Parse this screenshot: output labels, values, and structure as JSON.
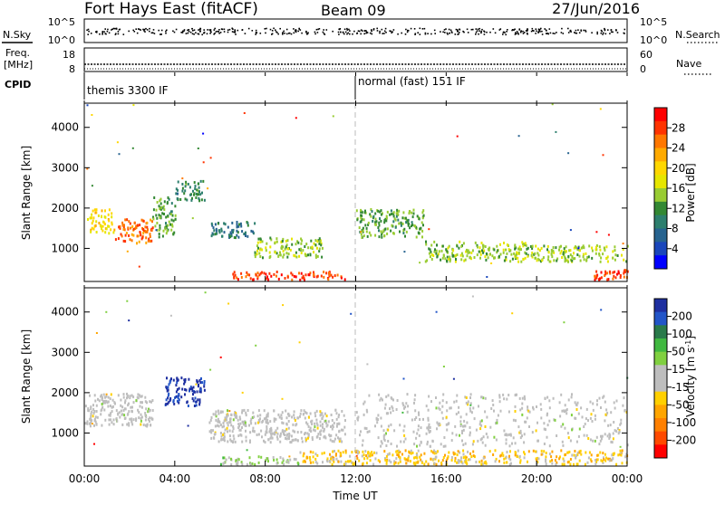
{
  "header": {
    "station": "Fort Hays East (fitACF)",
    "beam": "Beam 09",
    "date": "27/Jun/2016"
  },
  "noise_panel": {
    "left_label": "N.Sky",
    "right_label": "N.Search",
    "left_ticks": [
      "10^5",
      "10^0"
    ],
    "right_ticks": [
      "10^5",
      "10^0"
    ]
  },
  "freq_panel": {
    "left_label_1": "Freq.",
    "left_label_2": "[MHz]",
    "right_label": "Nave",
    "left_ticks": [
      "18",
      "8"
    ],
    "right_ticks": [
      "60",
      "0"
    ]
  },
  "cpid": {
    "label": "CPID",
    "modes": [
      {
        "text": "themis 3300 IF",
        "start_hour": 0
      },
      {
        "text": "normal (fast) 151 IF",
        "start_hour": 12
      }
    ]
  },
  "time_axis": {
    "title": "Time UT",
    "ticks": [
      "00:00",
      "04:00",
      "08:00",
      "12:00",
      "16:00",
      "20:00",
      "00:00"
    ]
  },
  "power_colorbar": {
    "label": "Power [dB]",
    "ticks": [
      "28",
      "24",
      "20",
      "16",
      "12",
      "8",
      "4"
    ],
    "colors": [
      "#ff0000",
      "#ff3300",
      "#ff7700",
      "#ffaa00",
      "#ffd700",
      "#e6e600",
      "#99cc33",
      "#338833",
      "#2d7f6e",
      "#27638f",
      "#1a46bb",
      "#0000ff"
    ]
  },
  "velocity_colorbar": {
    "label_main": "Velocity [m s",
    "label_sup": "-1",
    "label_end": "]",
    "ticks": [
      "200",
      "100",
      "50",
      "15",
      "-15",
      "-50",
      "-100",
      "-200"
    ],
    "colors": [
      "#1e2fa0",
      "#2255c8",
      "#2a7a4a",
      "#40b840",
      "#80d040",
      "#bebebe",
      "#bebebe",
      "#ffd000",
      "#ffa500",
      "#ff8000",
      "#ff4a00",
      "#ff0000"
    ]
  },
  "chart_data": [
    {
      "type": "scatter",
      "title": "Power",
      "xlabel": "Time UT",
      "ylabel": "Slant Range [km]",
      "xlim": [
        0,
        24
      ],
      "ylim": [
        180,
        4600
      ],
      "yticks": [
        1000,
        2000,
        3000,
        4000
      ],
      "color_range": [
        0,
        30
      ],
      "regions": [
        {
          "hour": [
            0.1,
            1.3
          ],
          "range": [
            1400,
            2000
          ],
          "value": 18
        },
        {
          "hour": [
            1.3,
            3.0
          ],
          "range": [
            1150,
            1750
          ],
          "value": 24
        },
        {
          "hour": [
            3.0,
            4.0
          ],
          "range": [
            1300,
            2300
          ],
          "value": 12
        },
        {
          "hour": [
            4.0,
            5.3
          ],
          "range": [
            2200,
            2700
          ],
          "value": 10
        },
        {
          "hour": [
            5.5,
            7.5
          ],
          "range": [
            1300,
            1700
          ],
          "value": 8
        },
        {
          "hour": [
            7.5,
            10.5
          ],
          "range": [
            800,
            1300
          ],
          "value": 14
        },
        {
          "hour": [
            6.5,
            11.5
          ],
          "range": [
            250,
            450
          ],
          "value": 26
        },
        {
          "hour": [
            12.0,
            15.0
          ],
          "range": [
            1300,
            2000
          ],
          "value": 12
        },
        {
          "hour": [
            15.0,
            19.5
          ],
          "range": [
            700,
            1200
          ],
          "value": 14
        },
        {
          "hour": [
            19.5,
            24.0
          ],
          "range": [
            700,
            1100
          ],
          "value": 14
        },
        {
          "hour": [
            22.5,
            24.0
          ],
          "range": [
            250,
            500
          ],
          "value": 26
        }
      ]
    },
    {
      "type": "scatter",
      "title": "Velocity",
      "xlabel": "Time UT",
      "ylabel": "Slant Range [km]",
      "xlim": [
        0,
        24
      ],
      "ylim": [
        180,
        4600
      ],
      "yticks": [
        1000,
        2000,
        3000,
        4000
      ],
      "color_range": [
        -250,
        250
      ],
      "regions": [
        {
          "hour": [
            0.0,
            3.0
          ],
          "range": [
            1200,
            2000
          ],
          "value": 0
        },
        {
          "hour": [
            3.5,
            5.3
          ],
          "range": [
            1700,
            2400
          ],
          "value": 220
        },
        {
          "hour": [
            5.5,
            11.5
          ],
          "range": [
            800,
            1600
          ],
          "value": 0
        },
        {
          "hour": [
            6.0,
            9.5
          ],
          "range": [
            250,
            450
          ],
          "value": 45
        },
        {
          "hour": [
            9.5,
            24.0
          ],
          "range": [
            250,
            600
          ],
          "value": -60
        },
        {
          "hour": [
            12.0,
            24.0
          ],
          "range": [
            700,
            2000
          ],
          "value": 0
        }
      ]
    }
  ]
}
